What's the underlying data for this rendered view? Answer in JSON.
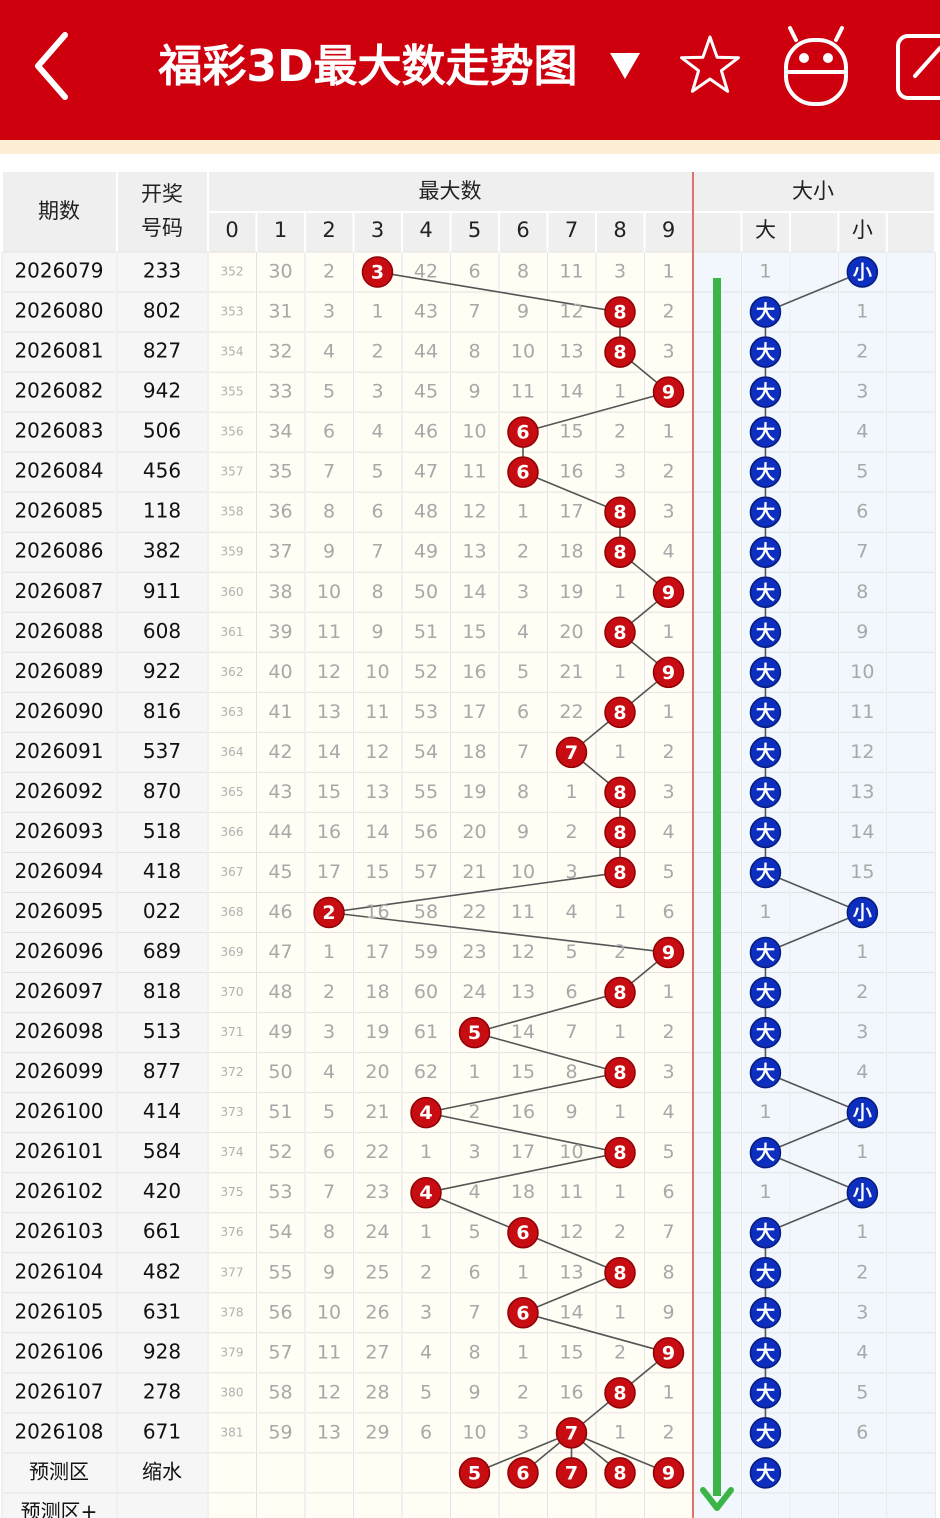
{
  "header": {
    "title": "福彩3D最大数走势图"
  },
  "table": {
    "columns": {
      "period": "期数",
      "number": [
        "开奖",
        "号码"
      ],
      "group_max": "最大数",
      "group_size": "大小",
      "digits": [
        0,
        1,
        2,
        3,
        4,
        5,
        6,
        7,
        8,
        9
      ],
      "size": [
        "大",
        "小"
      ]
    },
    "rows": [
      {
        "period": "2026079",
        "number": "233",
        "cells": [
          352,
          30,
          2,
          3,
          42,
          6,
          8,
          11,
          3,
          1
        ],
        "size": [
          1,
          "小"
        ]
      },
      {
        "period": "2026080",
        "number": "802",
        "cells": [
          353,
          31,
          3,
          1,
          43,
          7,
          9,
          12,
          8,
          2
        ],
        "size": [
          "大",
          1
        ]
      },
      {
        "period": "2026081",
        "number": "827",
        "cells": [
          354,
          32,
          4,
          2,
          44,
          8,
          10,
          13,
          8,
          3
        ],
        "size": [
          "大",
          2
        ]
      },
      {
        "period": "2026082",
        "number": "942",
        "cells": [
          355,
          33,
          5,
          3,
          45,
          9,
          11,
          14,
          1,
          9
        ],
        "size": [
          "大",
          3
        ]
      },
      {
        "period": "2026083",
        "number": "506",
        "cells": [
          356,
          34,
          6,
          4,
          46,
          10,
          6,
          15,
          2,
          1
        ],
        "size": [
          "大",
          4
        ]
      },
      {
        "period": "2026084",
        "number": "456",
        "cells": [
          357,
          35,
          7,
          5,
          47,
          11,
          6,
          16,
          3,
          2
        ],
        "size": [
          "大",
          5
        ]
      },
      {
        "period": "2026085",
        "number": "118",
        "cells": [
          358,
          36,
          8,
          6,
          48,
          12,
          1,
          17,
          8,
          3
        ],
        "size": [
          "大",
          6
        ]
      },
      {
        "period": "2026086",
        "number": "382",
        "cells": [
          359,
          37,
          9,
          7,
          49,
          13,
          2,
          18,
          8,
          4
        ],
        "size": [
          "大",
          7
        ]
      },
      {
        "period": "2026087",
        "number": "911",
        "cells": [
          360,
          38,
          10,
          8,
          50,
          14,
          3,
          19,
          1,
          9
        ],
        "size": [
          "大",
          8
        ]
      },
      {
        "period": "2026088",
        "number": "608",
        "cells": [
          361,
          39,
          11,
          9,
          51,
          15,
          4,
          20,
          8,
          1
        ],
        "size": [
          "大",
          9
        ]
      },
      {
        "period": "2026089",
        "number": "922",
        "cells": [
          362,
          40,
          12,
          10,
          52,
          16,
          5,
          21,
          1,
          9
        ],
        "size": [
          "大",
          10
        ]
      },
      {
        "period": "2026090",
        "number": "816",
        "cells": [
          363,
          41,
          13,
          11,
          53,
          17,
          6,
          22,
          8,
          1
        ],
        "size": [
          "大",
          11
        ]
      },
      {
        "period": "2026091",
        "number": "537",
        "cells": [
          364,
          42,
          14,
          12,
          54,
          18,
          7,
          7,
          1,
          2
        ],
        "size": [
          "大",
          12
        ]
      },
      {
        "period": "2026092",
        "number": "870",
        "cells": [
          365,
          43,
          15,
          13,
          55,
          19,
          8,
          1,
          8,
          3
        ],
        "size": [
          "大",
          13
        ]
      },
      {
        "period": "2026093",
        "number": "518",
        "cells": [
          366,
          44,
          16,
          14,
          56,
          20,
          9,
          2,
          8,
          4
        ],
        "size": [
          "大",
          14
        ]
      },
      {
        "period": "2026094",
        "number": "418",
        "cells": [
          367,
          45,
          17,
          15,
          57,
          21,
          10,
          3,
          8,
          5
        ],
        "size": [
          "大",
          15
        ]
      },
      {
        "period": "2026095",
        "number": "022",
        "cells": [
          368,
          46,
          2,
          16,
          58,
          22,
          11,
          4,
          1,
          6
        ],
        "size": [
          1,
          "小"
        ]
      },
      {
        "period": "2026096",
        "number": "689",
        "cells": [
          369,
          47,
          1,
          17,
          59,
          23,
          12,
          5,
          2,
          9
        ],
        "size": [
          "大",
          1
        ]
      },
      {
        "period": "2026097",
        "number": "818",
        "cells": [
          370,
          48,
          2,
          18,
          60,
          24,
          13,
          6,
          8,
          1
        ],
        "size": [
          "大",
          2
        ]
      },
      {
        "period": "2026098",
        "number": "513",
        "cells": [
          371,
          49,
          3,
          19,
          61,
          5,
          14,
          7,
          1,
          2
        ],
        "size": [
          "大",
          3
        ]
      },
      {
        "period": "2026099",
        "number": "877",
        "cells": [
          372,
          50,
          4,
          20,
          62,
          1,
          15,
          8,
          8,
          3
        ],
        "size": [
          "大",
          4
        ]
      },
      {
        "period": "2026100",
        "number": "414",
        "cells": [
          373,
          51,
          5,
          21,
          4,
          2,
          16,
          9,
          1,
          4
        ],
        "size": [
          1,
          "小"
        ]
      },
      {
        "period": "2026101",
        "number": "584",
        "cells": [
          374,
          52,
          6,
          22,
          1,
          3,
          17,
          10,
          8,
          5
        ],
        "size": [
          "大",
          1
        ]
      },
      {
        "period": "2026102",
        "number": "420",
        "cells": [
          375,
          53,
          7,
          23,
          4,
          4,
          18,
          11,
          1,
          6
        ],
        "size": [
          1,
          "小"
        ]
      },
      {
        "period": "2026103",
        "number": "661",
        "cells": [
          376,
          54,
          8,
          24,
          1,
          5,
          6,
          12,
          2,
          7
        ],
        "size": [
          "大",
          1
        ]
      },
      {
        "period": "2026104",
        "number": "482",
        "cells": [
          377,
          55,
          9,
          25,
          2,
          6,
          1,
          13,
          8,
          8
        ],
        "size": [
          "大",
          2
        ]
      },
      {
        "period": "2026105",
        "number": "631",
        "cells": [
          378,
          56,
          10,
          26,
          3,
          7,
          6,
          14,
          1,
          9
        ],
        "size": [
          "大",
          3
        ]
      },
      {
        "period": "2026106",
        "number": "928",
        "cells": [
          379,
          57,
          11,
          27,
          4,
          8,
          1,
          15,
          2,
          9
        ],
        "size": [
          "大",
          4
        ]
      },
      {
        "period": "2026107",
        "number": "278",
        "cells": [
          380,
          58,
          12,
          28,
          5,
          9,
          2,
          16,
          8,
          1
        ],
        "size": [
          "大",
          5
        ]
      },
      {
        "period": "2026108",
        "number": "671",
        "cells": [
          381,
          59,
          13,
          29,
          6,
          10,
          3,
          7,
          1,
          2
        ],
        "size": [
          "大",
          6
        ]
      }
    ],
    "predict": {
      "label": "预测区",
      "link": "缩水",
      "balls": [
        5,
        6,
        7,
        8,
        9
      ],
      "size_ball": "大"
    },
    "predict_plus": {
      "label": "预测区+"
    }
  }
}
